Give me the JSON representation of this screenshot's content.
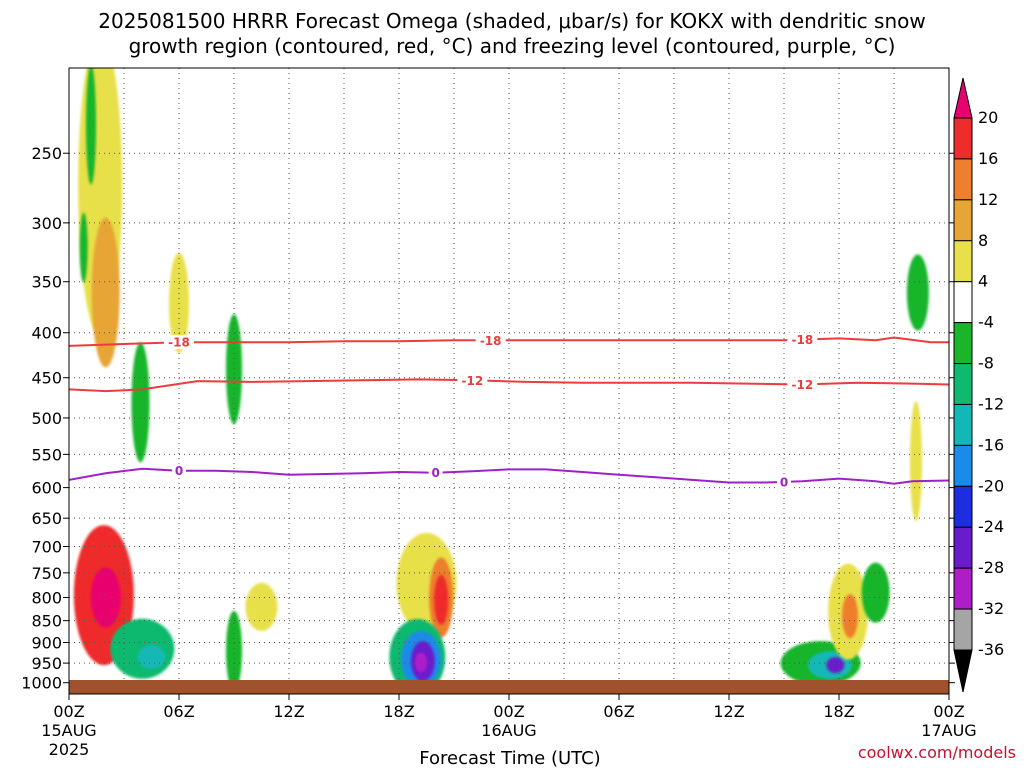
{
  "title_line1": "2025081500 HRRR Forecast Omega (shaded, μbar/s) for KOKX with dendritic snow",
  "title_line2": "growth region (contoured, red, °C) and freezing level (contoured, purple, °C)",
  "xlabel": "Forecast Time (UTC)",
  "credit": "coolwx.com/models",
  "x_ticks": [
    {
      "hour": 0,
      "label": "00Z",
      "sub1": "15AUG",
      "sub2": "2025"
    },
    {
      "hour": 6,
      "label": "06Z",
      "sub1": "",
      "sub2": ""
    },
    {
      "hour": 12,
      "label": "12Z",
      "sub1": "",
      "sub2": ""
    },
    {
      "hour": 18,
      "label": "18Z",
      "sub1": "",
      "sub2": ""
    },
    {
      "hour": 24,
      "label": "00Z",
      "sub1": "16AUG",
      "sub2": ""
    },
    {
      "hour": 30,
      "label": "06Z",
      "sub1": "",
      "sub2": ""
    },
    {
      "hour": 36,
      "label": "12Z",
      "sub1": "",
      "sub2": ""
    },
    {
      "hour": 42,
      "label": "18Z",
      "sub1": "",
      "sub2": ""
    },
    {
      "hour": 48,
      "label": "00Z",
      "sub1": "17AUG",
      "sub2": ""
    }
  ],
  "y_ticks": [
    "250",
    "300",
    "350",
    "400",
    "450",
    "500",
    "550",
    "600",
    "650",
    "700",
    "750",
    "800",
    "850",
    "900",
    "950",
    "1000"
  ],
  "colorbar": {
    "labels": [
      "20",
      "16",
      "12",
      "8",
      "4",
      "-4",
      "-8",
      "-12",
      "-16",
      "-20",
      "-24",
      "-28",
      "-32",
      "-36"
    ],
    "colors": [
      "#e8006e",
      "#ee2c2c",
      "#ee7f2c",
      "#e6a535",
      "#e8e04a",
      "#ffffff",
      "#19b52a",
      "#0fb96e",
      "#12b8b6",
      "#1a8be8",
      "#1c2ee0",
      "#6a1ccc",
      "#b01cc8",
      "#a5a5a5",
      "#000000"
    ]
  },
  "chart_data": {
    "type": "heatmap",
    "title": "2025081500 HRRR Forecast Omega (shaded, μbar/s) for KOKX with dendritic snow growth region (contoured, red, °C) and freezing level (contoured, purple, °C)",
    "xlabel": "Forecast Time (UTC)",
    "ylabel": "",
    "x_units": "forecast hour",
    "xlim": [
      0,
      48
    ],
    "ylim": [
      1030,
      200
    ],
    "y_scale": "log",
    "grid": true,
    "contours": [
      {
        "label": "-18",
        "color": "#ee3b3b",
        "label_hours": [
          6,
          23,
          40
        ],
        "points": [
          [
            0,
            414
          ],
          [
            3,
            412
          ],
          [
            6,
            410
          ],
          [
            9,
            410
          ],
          [
            12,
            410
          ],
          [
            15,
            409
          ],
          [
            18,
            409
          ],
          [
            21,
            408
          ],
          [
            24,
            408
          ],
          [
            27,
            408
          ],
          [
            30,
            408
          ],
          [
            33,
            408
          ],
          [
            36,
            408
          ],
          [
            39,
            408
          ],
          [
            42,
            406
          ],
          [
            44,
            408
          ],
          [
            45,
            405
          ],
          [
            47,
            410
          ],
          [
            48,
            410
          ]
        ]
      },
      {
        "label": "-12",
        "color": "#ee3b3b",
        "label_hours": [
          22,
          40
        ],
        "points": [
          [
            0,
            464
          ],
          [
            2,
            466
          ],
          [
            4,
            464
          ],
          [
            7,
            454
          ],
          [
            10,
            455
          ],
          [
            13,
            454
          ],
          [
            16,
            453
          ],
          [
            19,
            452
          ],
          [
            22,
            453
          ],
          [
            25,
            455
          ],
          [
            28,
            456
          ],
          [
            31,
            456
          ],
          [
            34,
            456
          ],
          [
            37,
            457
          ],
          [
            40,
            458
          ],
          [
            43,
            456
          ],
          [
            46,
            457
          ],
          [
            48,
            458
          ]
        ]
      },
      {
        "label": "0",
        "color": "#a020c8",
        "label_hours": [
          6,
          20,
          39
        ],
        "points": [
          [
            0,
            588
          ],
          [
            2,
            578
          ],
          [
            4,
            571
          ],
          [
            6,
            574
          ],
          [
            8,
            574
          ],
          [
            10,
            576
          ],
          [
            12,
            580
          ],
          [
            14,
            579
          ],
          [
            16,
            578
          ],
          [
            18,
            576
          ],
          [
            20,
            577
          ],
          [
            22,
            575
          ],
          [
            24,
            572
          ],
          [
            26,
            572
          ],
          [
            28,
            576
          ],
          [
            30,
            580
          ],
          [
            32,
            584
          ],
          [
            34,
            588
          ],
          [
            36,
            592
          ],
          [
            38,
            592
          ],
          [
            40,
            590
          ],
          [
            42,
            586
          ],
          [
            44,
            590
          ],
          [
            45,
            594
          ],
          [
            46,
            590
          ],
          [
            48,
            589
          ]
        ]
      }
    ],
    "omega_regions": [
      {
        "hour": 1.7,
        "p": 272,
        "value": 4
      },
      {
        "hour": 2.0,
        "p": 360,
        "value": 8
      },
      {
        "hour": 1.2,
        "p": 232,
        "value": -4
      },
      {
        "hour": 0.8,
        "p": 320,
        "value": -4
      },
      {
        "hour": 3.9,
        "p": 480,
        "value": -4
      },
      {
        "hour": 6.0,
        "p": 370,
        "value": 4
      },
      {
        "hour": 9.0,
        "p": 440,
        "value": -4
      },
      {
        "hour": 1.9,
        "p": 795,
        "value": 16
      },
      {
        "hour": 2.0,
        "p": 800,
        "value": 20
      },
      {
        "hour": 4.0,
        "p": 915,
        "value": -8
      },
      {
        "hour": 4.5,
        "p": 935,
        "value": -12
      },
      {
        "hour": 10.5,
        "p": 820,
        "value": 4
      },
      {
        "hour": 9.0,
        "p": 920,
        "value": -4
      },
      {
        "hour": 19.5,
        "p": 770,
        "value": 4
      },
      {
        "hour": 20.3,
        "p": 800,
        "value": 12
      },
      {
        "hour": 20.3,
        "p": 805,
        "value": 16
      },
      {
        "hour": 19.0,
        "p": 935,
        "value": -8
      },
      {
        "hour": 19.2,
        "p": 940,
        "value": -16
      },
      {
        "hour": 19.3,
        "p": 945,
        "value": -24
      },
      {
        "hour": 19.2,
        "p": 948,
        "value": -28
      },
      {
        "hour": 41.0,
        "p": 950,
        "value": -4
      },
      {
        "hour": 41.5,
        "p": 955,
        "value": -12
      },
      {
        "hour": 41.8,
        "p": 955,
        "value": -24
      },
      {
        "hour": 42.5,
        "p": 830,
        "value": 4
      },
      {
        "hour": 42.6,
        "p": 840,
        "value": 12
      },
      {
        "hour": 44.0,
        "p": 790,
        "value": -4
      },
      {
        "hour": 46.3,
        "p": 360,
        "value": -4
      },
      {
        "hour": 46.2,
        "p": 560,
        "value": 4
      }
    ]
  }
}
